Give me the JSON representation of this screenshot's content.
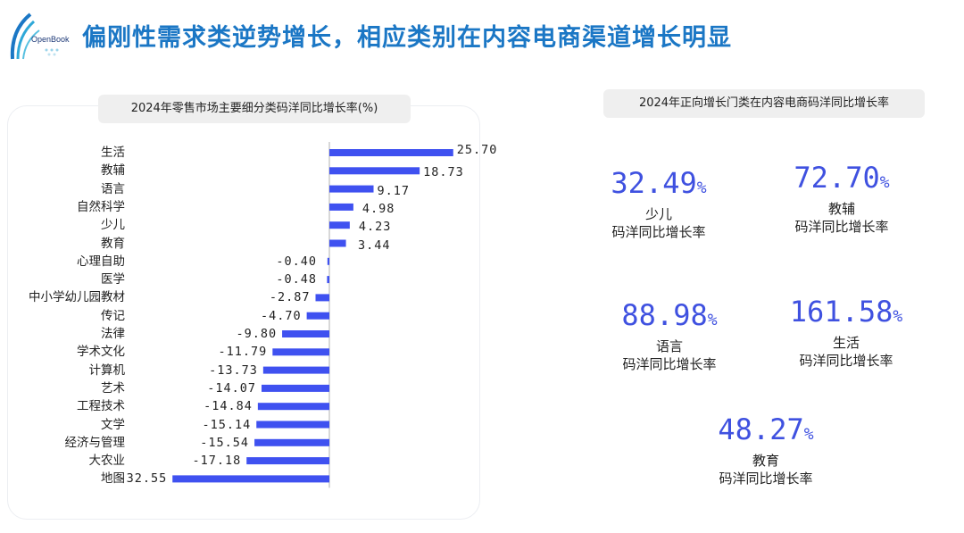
{
  "header": {
    "title": "偏刚性需求类逆势增长，相应类别在内容电商渠道增长明显",
    "logo_text": "OpenBook"
  },
  "left_panel": {
    "chip_label": "2024年零售市场主要细分类码洋同比增长率(%)"
  },
  "right_panel": {
    "chip_label": "2024年正向增长门类在内容电商码洋同比增长率",
    "stats": [
      {
        "value": "32.49",
        "pct": "%",
        "label": "少儿",
        "sub": "码洋同比增长率"
      },
      {
        "value": "72.70",
        "pct": "%",
        "label": "教辅",
        "sub": "码洋同比增长率"
      },
      {
        "value": "88.98",
        "pct": "%",
        "label": "语言",
        "sub": "码洋同比增长率"
      },
      {
        "value": "161.58",
        "pct": "%",
        "label": "生活",
        "sub": "码洋同比增长率"
      },
      {
        "value": "48.27",
        "pct": "%",
        "label": "教育",
        "sub": "码洋同比增长率"
      }
    ]
  },
  "chart_data": {
    "type": "bar",
    "orientation": "horizontal",
    "title": "2024年零售市场主要细分类码洋同比增长率(%)",
    "categories": [
      "生活",
      "教辅",
      "语言",
      "自然科学",
      "少儿",
      "教育",
      "心理自助",
      "医学",
      "中小学幼儿园教材",
      "传记",
      "法律",
      "学术文化",
      "计算机",
      "艺术",
      "工程技术",
      "文学",
      "经济与管理",
      "大农业",
      "地图"
    ],
    "values": [
      25.7,
      18.73,
      9.17,
      4.98,
      4.23,
      3.44,
      -0.4,
      -0.48,
      -2.87,
      -4.7,
      -9.8,
      -11.79,
      -13.73,
      -14.07,
      -14.84,
      -15.14,
      -15.54,
      -17.18,
      -32.55
    ],
    "value_labels": [
      "25.70",
      "18.73",
      "9.17",
      "4.98",
      "4.23",
      "3.44",
      "-0.40",
      "-0.48",
      "-2.87",
      "-4.70",
      "-9.80",
      "-11.79",
      "-13.73",
      "-14.07",
      "-14.84",
      "-15.14",
      "-15.54",
      "-17.18",
      "-32.55"
    ],
    "bar_color": "#3f51f0",
    "grid": false
  }
}
